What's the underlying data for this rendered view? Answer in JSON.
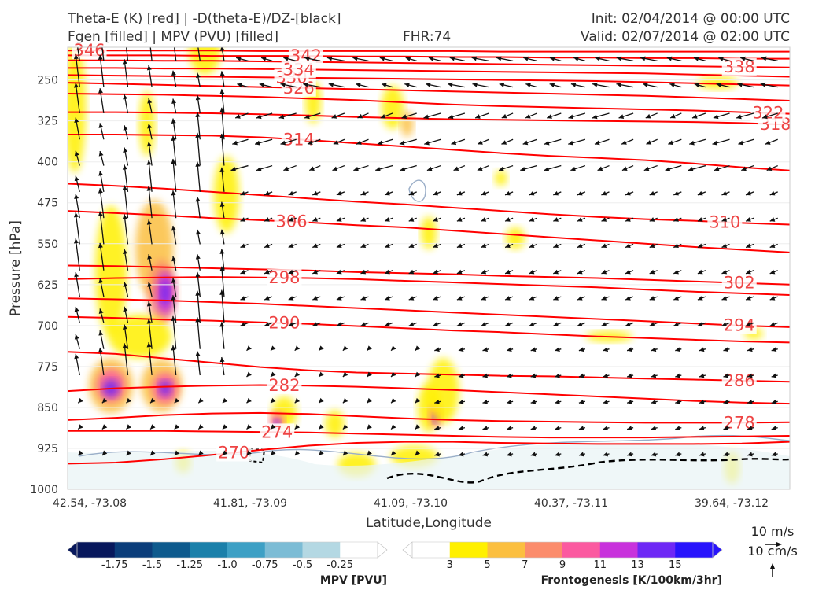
{
  "header": {
    "title_line1": "Theta-E (K) [red] | -D(theta-E)/DZ-[black]",
    "title_line2": "Fgen [filled] | MPV (PVU) [filled]",
    "fhr": "FHR:74",
    "init": "Init: 02/04/2014 @ 00:00 UTC",
    "valid": "Valid: 02/07/2014 @ 02:00 UTC"
  },
  "chart_data": {
    "type": "cross-section",
    "xlabel": "Latitude,Longitude",
    "ylabel": "Pressure [hPa]",
    "x_ticks": [
      "42.54, -73.08",
      "41.81, -73.09",
      "41.09, -73.10",
      "40.37, -73.11",
      "39.64, -73.12"
    ],
    "y_ticks": [
      250,
      325,
      400,
      475,
      550,
      625,
      700,
      775,
      850,
      925,
      1000
    ],
    "ylim": [
      1000,
      190
    ],
    "grid": true,
    "theta_e_color": "#ff0000",
    "theta_e_contours": [
      {
        "value": 270,
        "p": [
          953,
          951,
          945,
          937,
          928,
          920,
          915,
          913,
          913,
          915,
          916,
          917,
          917,
          917,
          916,
          913
        ],
        "labels": [
          "270"
        ]
      },
      {
        "value": 274,
        "p": [
          893,
          893,
          893,
          894,
          895,
          896,
          898,
          900,
          902,
          904,
          905,
          905,
          905,
          904,
          903,
          902
        ],
        "labels": [
          "274"
        ]
      },
      {
        "value": 278,
        "p": [
          873,
          869,
          864,
          861,
          860,
          862,
          866,
          870,
          873,
          875,
          876,
          877,
          878,
          878,
          878,
          877
        ],
        "labels": [
          "278"
        ]
      },
      {
        "value": 282,
        "p": [
          820,
          815,
          812,
          810,
          809,
          810,
          812,
          815,
          818,
          822,
          826,
          830,
          834,
          838,
          841,
          843
        ],
        "labels": [
          "282"
        ]
      },
      {
        "value": 286,
        "p": [
          748,
          752,
          760,
          768,
          776,
          782,
          786,
          788,
          790,
          792,
          793,
          795,
          797,
          799,
          801,
          803
        ],
        "labels": [
          "286"
        ]
      },
      {
        "value": 290,
        "p": [
          684,
          686,
          689,
          691,
          694,
          697,
          701,
          705,
          709,
          712,
          716,
          720,
          723,
          726,
          729,
          731
        ],
        "labels": [
          "290"
        ]
      },
      {
        "value": 294,
        "p": [
          650,
          652,
          654,
          657,
          660,
          664,
          668,
          672,
          676,
          680,
          684,
          688,
          692,
          696,
          700,
          703
        ],
        "labels": [
          "294"
        ]
      },
      {
        "value": 298,
        "p": [
          615,
          613,
          612,
          611,
          612,
          613,
          615,
          618,
          621,
          624,
          627,
          630,
          634,
          638,
          641,
          644
        ],
        "labels": [
          "298"
        ]
      },
      {
        "value": 302,
        "p": [
          590,
          591,
          593,
          595,
          597,
          599,
          602,
          604,
          606,
          609,
          611,
          613,
          616,
          619,
          622,
          625
        ],
        "labels": [
          "302"
        ]
      },
      {
        "value": 306,
        "p": [
          490,
          494,
          498,
          503,
          507,
          511,
          516,
          520,
          526,
          532,
          538,
          544,
          550,
          556,
          561,
          566
        ],
        "labels": [
          "306"
        ]
      },
      {
        "value": 310,
        "p": [
          440,
          444,
          449,
          455,
          461,
          467,
          473,
          478,
          484,
          490,
          496,
          501,
          505,
          508,
          512,
          515
        ],
        "labels": [
          "310"
        ]
      },
      {
        "value": 314,
        "p": [
          350,
          350,
          351,
          352,
          355,
          360,
          366,
          372,
          378,
          384,
          389,
          393,
          397,
          403,
          410,
          416
        ],
        "labels": [
          "314"
        ]
      },
      {
        "value": 318,
        "p": [
          309,
          309,
          310,
          311,
          313,
          315,
          318,
          320,
          322,
          323,
          324,
          325,
          326,
          327,
          329,
          332
        ],
        "labels": [
          "318"
        ]
      },
      {
        "value": 322,
        "p": [
          275,
          276,
          277,
          279,
          281,
          284,
          287,
          291,
          295,
          298,
          300,
          302,
          304,
          306,
          309,
          312
        ],
        "labels": [
          "322"
        ]
      },
      {
        "value": 326,
        "p": [
          255,
          257,
          259,
          261,
          263,
          265,
          267,
          269,
          271,
          273,
          275,
          277,
          279,
          282,
          285,
          288
        ],
        "labels": [
          "326"
        ]
      },
      {
        "value": 330,
        "p": [
          241,
          242,
          243,
          244,
          245,
          246,
          247,
          248,
          249,
          250,
          251,
          252,
          254,
          256,
          258,
          260
        ],
        "labels": [
          "330"
        ]
      },
      {
        "value": 334,
        "p": [
          228,
          228,
          229,
          229,
          230,
          231,
          232,
          233,
          234,
          235,
          236,
          237,
          238,
          240,
          242,
          244
        ],
        "labels": [
          "334"
        ]
      },
      {
        "value": 338,
        "p": [
          214,
          214,
          215,
          215,
          216,
          217,
          218,
          219,
          220,
          221,
          222,
          223,
          224,
          225,
          226,
          227
        ],
        "labels": [
          "338"
        ]
      },
      {
        "value": 342,
        "p": [
          205,
          205,
          205,
          206,
          206,
          206,
          207,
          207,
          208,
          208,
          209,
          209,
          210,
          210,
          211,
          211
        ],
        "labels": [
          "342"
        ]
      },
      {
        "value": 346,
        "p": [
          196,
          196,
          196,
          196,
          197,
          197,
          197,
          197,
          197,
          198,
          198,
          198,
          198,
          198,
          198,
          198
        ],
        "labels": [
          "346"
        ]
      }
    ],
    "fgen_colorbar": {
      "title": "Frontogenesis [K/100km/3hr]",
      "ticks": [
        "3",
        "5",
        "7",
        "9",
        "11",
        "13",
        "15"
      ],
      "colors": [
        "#ffffff",
        "#fff000",
        "#fbbf40",
        "#fb8c6c",
        "#fb5aa0",
        "#c832dc",
        "#6e28f5",
        "#2814fc"
      ]
    },
    "mpv_colorbar": {
      "title": "MPV [PVU]",
      "ticks": [
        "-1.75",
        "-1.5",
        "-1.25",
        "-1.0",
        "-0.75",
        "-0.5",
        "-0.25"
      ],
      "colors": [
        "#08185c",
        "#0b3d7a",
        "#0e5a8d",
        "#1b80aa",
        "#3da0c5",
        "#7cbcd5",
        "#b4d8e3",
        "#ffffff"
      ]
    },
    "wind_key": {
      "horizontal": "10 m/s",
      "vertical": "10 cm/s"
    }
  }
}
